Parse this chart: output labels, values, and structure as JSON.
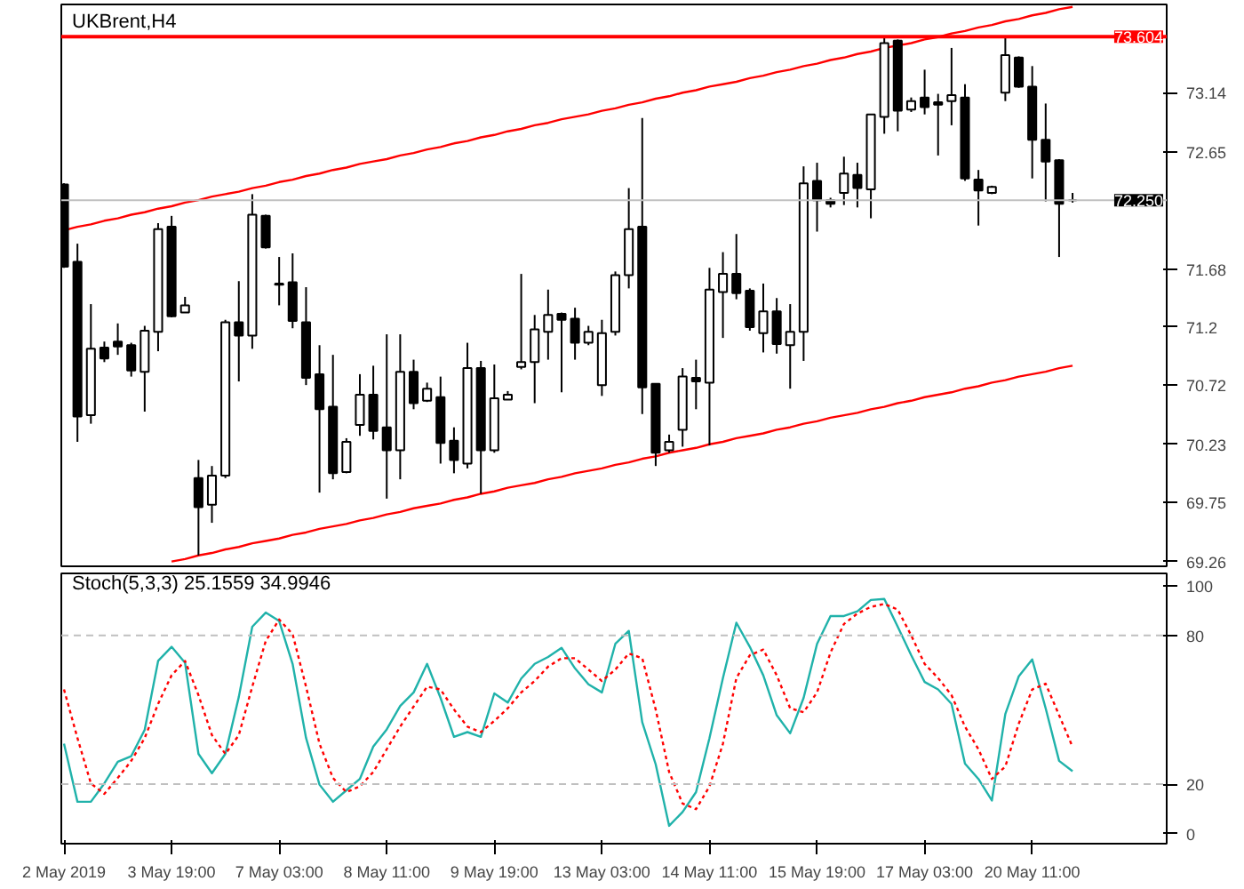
{
  "chart_data": [
    {
      "type": "candlestick",
      "title": "UKBrent,H4",
      "categories": [
        null,
        null,
        null,
        null,
        null,
        null,
        null,
        null,
        null,
        null,
        null,
        null,
        null,
        null,
        null,
        null,
        null,
        null,
        null,
        null,
        null,
        null,
        null,
        null,
        null,
        null,
        null,
        null,
        null,
        null,
        null,
        null,
        null,
        null,
        null,
        null,
        null,
        null,
        null,
        null,
        null,
        null,
        null,
        null,
        null,
        null,
        null,
        null,
        null,
        null,
        null,
        null,
        null,
        null,
        null,
        null,
        null,
        null,
        null,
        null,
        null,
        null,
        null,
        null,
        null,
        null,
        null,
        null,
        null,
        null,
        null,
        null,
        null,
        null,
        null,
        null
      ],
      "ohlc": [
        [
          72.38,
          72.39,
          71.69,
          71.7
        ],
        [
          71.74,
          71.89,
          70.25,
          70.46
        ],
        [
          70.47,
          71.39,
          70.4,
          71.02
        ],
        [
          71.03,
          71.08,
          70.91,
          70.94
        ],
        [
          71.08,
          71.23,
          70.97,
          71.04
        ],
        [
          71.05,
          71.07,
          70.79,
          70.84
        ],
        [
          70.83,
          71.21,
          70.5,
          71.17
        ],
        [
          71.16,
          72.06,
          71.0,
          72.01
        ],
        [
          72.03,
          72.12,
          71.28,
          71.29
        ],
        [
          71.32,
          71.45,
          71.32,
          71.38
        ],
        [
          69.95,
          70.1,
          69.31,
          69.71
        ],
        [
          69.73,
          70.05,
          69.58,
          69.97
        ],
        [
          69.97,
          71.26,
          69.95,
          71.24
        ],
        [
          71.24,
          71.58,
          70.75,
          71.13
        ],
        [
          71.13,
          72.3,
          71.02,
          72.13
        ],
        [
          72.12,
          72.13,
          71.85,
          71.86
        ],
        [
          71.56,
          71.78,
          71.38,
          71.55
        ],
        [
          71.57,
          71.81,
          71.19,
          71.25
        ],
        [
          71.24,
          71.53,
          70.72,
          70.78
        ],
        [
          70.81,
          71.05,
          69.83,
          70.52
        ],
        [
          70.54,
          70.97,
          69.94,
          69.99
        ],
        [
          70.0,
          70.28,
          69.99,
          70.25
        ],
        [
          70.39,
          70.81,
          70.3,
          70.64
        ],
        [
          70.64,
          70.88,
          70.27,
          70.34
        ],
        [
          70.37,
          71.14,
          69.78,
          70.18
        ],
        [
          70.18,
          71.14,
          69.94,
          70.83
        ],
        [
          70.83,
          70.93,
          70.52,
          70.57
        ],
        [
          70.59,
          70.74,
          70.58,
          70.69
        ],
        [
          70.62,
          70.79,
          70.07,
          70.24
        ],
        [
          70.26,
          70.37,
          69.99,
          70.1
        ],
        [
          70.07,
          71.07,
          70.03,
          70.86
        ],
        [
          70.86,
          70.92,
          69.82,
          70.18
        ],
        [
          70.18,
          70.89,
          70.16,
          70.61
        ],
        [
          70.6,
          70.67,
          70.6,
          70.64
        ],
        [
          70.87,
          71.64,
          70.85,
          70.91
        ],
        [
          70.91,
          71.3,
          70.57,
          71.18
        ],
        [
          71.16,
          71.51,
          70.93,
          71.3
        ],
        [
          71.31,
          71.32,
          70.66,
          71.26
        ],
        [
          71.27,
          71.36,
          70.93,
          71.07
        ],
        [
          71.07,
          71.21,
          71.05,
          71.16
        ],
        [
          70.72,
          71.26,
          70.63,
          71.15
        ],
        [
          71.16,
          71.66,
          71.13,
          71.63
        ],
        [
          71.63,
          72.35,
          71.52,
          72.01
        ],
        [
          72.03,
          72.93,
          70.48,
          70.7
        ],
        [
          70.73,
          70.73,
          70.05,
          70.16
        ],
        [
          70.18,
          70.31,
          70.16,
          70.25
        ],
        [
          70.35,
          70.86,
          70.21,
          70.79
        ],
        [
          70.78,
          70.93,
          70.52,
          70.75
        ],
        [
          70.74,
          71.69,
          70.22,
          71.51
        ],
        [
          71.49,
          71.82,
          71.11,
          71.64
        ],
        [
          71.64,
          71.97,
          71.43,
          71.48
        ],
        [
          71.5,
          71.52,
          71.17,
          71.2
        ],
        [
          71.15,
          71.56,
          70.99,
          71.33
        ],
        [
          71.33,
          71.44,
          70.98,
          71.06
        ],
        [
          71.05,
          71.39,
          70.69,
          71.16
        ],
        [
          71.16,
          72.53,
          70.92,
          72.39
        ],
        [
          72.41,
          72.56,
          71.99,
          72.25
        ],
        [
          72.25,
          72.27,
          72.19,
          72.22
        ],
        [
          72.31,
          72.61,
          72.21,
          72.47
        ],
        [
          72.46,
          72.56,
          72.19,
          72.35
        ],
        [
          72.34,
          72.96,
          72.1,
          72.96
        ],
        [
          72.94,
          73.6,
          72.8,
          73.55
        ],
        [
          73.57,
          73.58,
          72.82,
          72.99
        ],
        [
          73.0,
          73.1,
          72.98,
          73.07
        ],
        [
          73.1,
          73.33,
          72.96,
          73.02
        ],
        [
          73.06,
          73.13,
          72.62,
          73.04
        ],
        [
          73.07,
          73.51,
          72.87,
          73.12
        ],
        [
          73.1,
          73.21,
          72.41,
          72.43
        ],
        [
          72.42,
          72.5,
          72.04,
          72.33
        ],
        [
          72.31,
          72.37,
          72.3,
          72.36
        ],
        [
          73.14,
          73.6,
          73.07,
          73.45
        ],
        [
          73.43,
          73.44,
          73.18,
          73.19
        ],
        [
          73.19,
          73.36,
          72.43,
          72.75
        ],
        [
          72.75,
          73.05,
          72.24,
          72.57
        ],
        [
          72.58,
          72.59,
          71.78,
          72.22
        ],
        [
          72.25,
          72.31,
          72.23,
          72.25
        ]
      ],
      "series": [
        {
          "type": "line",
          "color": "#ff0000",
          "values": [
            72.0,
            72.03,
            72.05,
            72.08,
            72.1,
            72.13,
            72.15,
            72.18,
            72.2,
            72.23,
            72.25,
            72.28,
            72.3,
            72.32,
            72.35,
            72.37,
            72.4,
            72.42,
            72.45,
            72.47,
            72.5,
            72.52,
            72.55,
            72.57,
            72.59,
            72.62,
            72.64,
            72.67,
            72.69,
            72.72,
            72.74,
            72.77,
            72.79,
            72.82,
            72.84,
            72.87,
            72.89,
            72.92,
            72.94,
            72.96,
            72.99,
            73.01,
            73.04,
            73.06,
            73.09,
            73.11,
            73.14,
            73.16,
            73.19,
            73.21,
            73.23,
            73.26,
            73.28,
            73.31,
            73.33,
            73.36,
            73.38,
            73.41,
            73.43,
            73.46,
            73.48,
            73.51,
            73.53,
            73.55,
            73.58,
            73.6,
            73.63,
            73.65,
            73.68,
            73.7,
            73.73,
            73.75,
            73.78,
            73.8,
            73.83,
            73.85
          ]
        },
        {
          "type": "line",
          "color": "#ff0000",
          "values": [
            null,
            null,
            null,
            null,
            null,
            null,
            null,
            null,
            69.26,
            69.28,
            69.31,
            69.33,
            69.36,
            69.38,
            69.41,
            69.43,
            69.45,
            69.48,
            69.5,
            69.53,
            69.55,
            69.57,
            69.6,
            69.62,
            69.65,
            69.67,
            69.7,
            69.72,
            69.74,
            69.77,
            69.79,
            69.82,
            69.84,
            69.87,
            69.89,
            69.91,
            69.94,
            69.96,
            69.99,
            70.01,
            70.03,
            70.06,
            70.08,
            70.11,
            70.13,
            70.16,
            70.18,
            70.2,
            70.23,
            70.25,
            70.28,
            70.3,
            70.32,
            70.35,
            70.37,
            70.4,
            70.42,
            70.45,
            70.47,
            70.49,
            70.52,
            70.54,
            70.57,
            70.59,
            70.62,
            70.64,
            70.66,
            70.69,
            70.71,
            70.74,
            70.76,
            70.79,
            70.81,
            70.83,
            70.86,
            70.88
          ]
        }
      ],
      "ylim": [
        69.22,
        73.87
      ],
      "yticks": [
        73.14,
        72.65,
        71.68,
        71.2,
        70.72,
        70.23,
        69.75,
        69.26
      ],
      "ref_lines": [
        {
          "axis": "y",
          "value": 73.604,
          "label": "73.604",
          "color": "#ff0000"
        },
        {
          "axis": "y",
          "value": 72.25,
          "label": "72.250",
          "color": "#c0c0c0"
        }
      ],
      "tick_labels": "y"
    },
    {
      "type": "line",
      "title": "Stoch(5,3,3) 25.1559 34.9946",
      "categories": [
        "2 May 2019",
        null,
        null,
        null,
        null,
        null,
        null,
        null,
        "3 May 19:00",
        null,
        null,
        null,
        null,
        null,
        null,
        null,
        "7 May 03:00",
        null,
        null,
        null,
        null,
        null,
        null,
        null,
        "8 May 11:00",
        null,
        null,
        null,
        null,
        null,
        null,
        null,
        "9 May 19:00",
        null,
        null,
        null,
        null,
        null,
        null,
        null,
        "13 May 03:00",
        null,
        null,
        null,
        null,
        null,
        null,
        null,
        "14 May 11:00",
        null,
        null,
        null,
        null,
        null,
        null,
        null,
        "15 May 19:00",
        null,
        null,
        null,
        null,
        null,
        null,
        null,
        "17 May 03:00",
        null,
        null,
        null,
        null,
        null,
        null,
        null,
        "20 May 11:00",
        null,
        null,
        null
      ],
      "series": [
        {
          "color": "#20b2aa",
          "line_style": "solid",
          "values": [
            36.3,
            12.9,
            12.9,
            20.3,
            29.0,
            31.3,
            41.9,
            69.7,
            75.4,
            69.0,
            32.2,
            24.4,
            32.2,
            55.2,
            83.5,
            89.2,
            85.8,
            68.5,
            38.6,
            19.8,
            12.9,
            17.5,
            22.1,
            35.2,
            42.1,
            51.5,
            57.0,
            68.5,
            54.8,
            39.1,
            41.0,
            39.1,
            56.6,
            52.9,
            62.6,
            68.5,
            71.3,
            75.0,
            66.7,
            60.3,
            57.0,
            76.6,
            81.8,
            45.0,
            28.0,
            3.2,
            8.8,
            16.8,
            38.6,
            62.8,
            85.1,
            75.4,
            63.9,
            47.8,
            40.5,
            54.8,
            76.6,
            87.8,
            87.8,
            89.7,
            94.3,
            94.7,
            83.5,
            72.0,
            61.2,
            58.2,
            52.4,
            28.3,
            22.1,
            13.4,
            48.3,
            63.5,
            70.3,
            50.6,
            29.4,
            25.2
          ]
        },
        {
          "color": "#ff0000",
          "line_style": "dotted",
          "values": [
            58.2,
            38.6,
            20.3,
            16.1,
            22.5,
            29.4,
            38.6,
            52.4,
            63.9,
            69.7,
            55.9,
            39.8,
            32.2,
            39.8,
            59.3,
            77.7,
            86.4,
            80.5,
            59.3,
            36.3,
            22.5,
            16.8,
            19.1,
            24.9,
            34.1,
            43.2,
            51.3,
            59.3,
            58.2,
            50.1,
            43.2,
            41.0,
            45.5,
            50.6,
            57.0,
            61.6,
            67.4,
            70.8,
            70.8,
            66.2,
            61.6,
            66.2,
            72.7,
            70.8,
            50.1,
            24.9,
            12.2,
            9.9,
            19.1,
            36.3,
            62.8,
            72.0,
            74.3,
            63.9,
            50.6,
            49.0,
            57.0,
            73.1,
            84.6,
            88.8,
            91.5,
            92.7,
            90.4,
            80.0,
            68.5,
            62.8,
            55.9,
            43.2,
            34.1,
            22.1,
            27.1,
            44.4,
            58.2,
            60.5,
            47.8,
            35.0
          ]
        }
      ],
      "ylim": [
        -4,
        105
      ],
      "yticks": [
        0,
        20,
        80,
        100
      ],
      "ref_lines": [
        {
          "axis": "y",
          "value": 20,
          "color": "#c0c0c0",
          "line_style": "dashed"
        },
        {
          "axis": "y",
          "value": 80,
          "color": "#c0c0c0",
          "line_style": "dashed"
        }
      ]
    }
  ]
}
